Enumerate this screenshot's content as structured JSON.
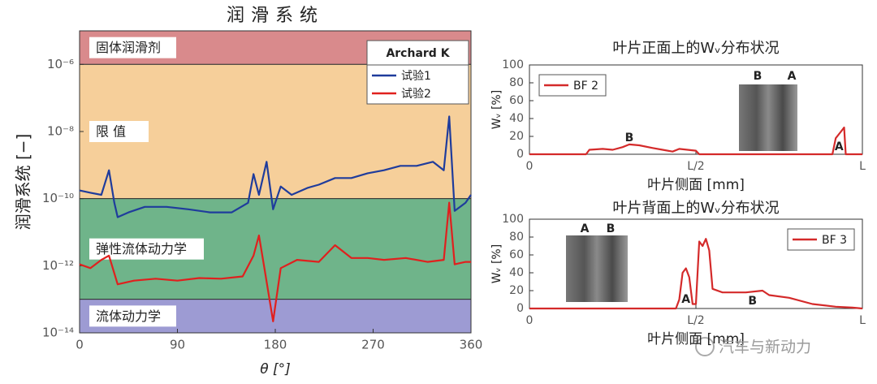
{
  "chart_data": [
    {
      "type": "line",
      "title": "润滑系统",
      "y_label": "润滑系统 [−]",
      "x_label": "θ [°]",
      "log_y": true,
      "xlim": [
        0,
        360
      ],
      "xticks": [
        0,
        90,
        180,
        270,
        360
      ],
      "ylim": [
        1e-14,
        1e-05
      ],
      "yticks": [
        {
          "value": 1e-14,
          "label": "10⁻¹⁴"
        },
        {
          "value": 1e-12,
          "label": "10⁻¹²"
        },
        {
          "value": 1e-10,
          "label": "10⁻¹⁰"
        },
        {
          "value": 1e-08,
          "label": "10⁻⁸"
        },
        {
          "value": 1e-06,
          "label": "10⁻⁶"
        }
      ],
      "regions": [
        {
          "label": "固体润滑剂",
          "from": 1e-06,
          "to": 1e-05,
          "color": "#d98a8c"
        },
        {
          "label": "限 值",
          "from": 1e-10,
          "to": 1e-06,
          "color": "#f6cf9a"
        },
        {
          "label": "弹性流体动力学",
          "from": 1e-13,
          "to": 1e-10,
          "color": "#6fb48a"
        },
        {
          "label": "流体动力学",
          "from": 1e-14,
          "to": 1e-13,
          "color": "#9d9bd3"
        }
      ],
      "legend_title": "Archard K",
      "legend": "upper right",
      "series": [
        {
          "name": "试验1",
          "color": "#1f3c9c",
          "x": [
            0,
            10,
            20,
            27,
            32,
            35,
            45,
            60,
            80,
            100,
            120,
            140,
            155,
            160,
            165,
            172,
            178,
            185,
            195,
            210,
            220,
            235,
            250,
            265,
            280,
            295,
            310,
            325,
            335,
            340,
            345,
            355,
            360
          ],
          "values": [
            1.75e-10,
            1.5e-10,
            1.3e-10,
            7e-10,
            7.5e-11,
            2.8e-11,
            3.9e-11,
            5.7e-11,
            5.7e-11,
            4.8e-11,
            3.9e-11,
            3.9e-11,
            7.5e-11,
            5.4e-10,
            1.3e-10,
            1.25e-09,
            4.8e-11,
            2.3e-10,
            1.3e-10,
            2.1e-10,
            2.6e-10,
            4.1e-10,
            4.1e-10,
            5.7e-10,
            7e-10,
            9.5e-10,
            9.5e-10,
            1.25e-09,
            7e-10,
            2.8e-08,
            4.3e-11,
            7.5e-11,
            1.3e-10
          ]
        },
        {
          "name": "试验2",
          "color": "#e0201e",
          "x": [
            0,
            10,
            20,
            27,
            35,
            50,
            70,
            90,
            110,
            130,
            150,
            160,
            165,
            170,
            178,
            185,
            200,
            220,
            235,
            250,
            265,
            280,
            300,
            320,
            335,
            340,
            345,
            355,
            360
          ],
          "values": [
            1.1e-12,
            8.5e-13,
            1.5e-12,
            2e-12,
            2.8e-13,
            3.6e-13,
            4.1e-13,
            3.6e-13,
            4.3e-13,
            4.1e-13,
            4.8e-13,
            2e-12,
            8e-12,
            8.5e-13,
            2.2e-14,
            8.5e-13,
            1.5e-12,
            1.3e-12,
            4.1e-12,
            1.7e-12,
            1.7e-12,
            1.5e-12,
            1.7e-12,
            1.3e-12,
            1.5e-12,
            7.6e-11,
            1.1e-12,
            1.3e-12,
            1.3e-12
          ]
        }
      ]
    },
    {
      "type": "line",
      "title": "叶片正面上的Wᵥ分布状况",
      "y_label": "Wᵥ [%]",
      "x_label": "叶片侧面 [mm]",
      "xlim": [
        0,
        1
      ],
      "xticks": [
        0,
        {
          "value": 0.5,
          "label": "L/2"
        },
        {
          "value": 1,
          "label": "L"
        }
      ],
      "ylim": [
        0,
        100
      ],
      "yticks": [
        0,
        20,
        40,
        60,
        80,
        100
      ],
      "legend": "upper left",
      "series": [
        {
          "name": "BF 2",
          "color": "#d42a2a",
          "x": [
            0,
            0.17,
            0.18,
            0.22,
            0.25,
            0.28,
            0.3,
            0.33,
            0.37,
            0.4,
            0.43,
            0.45,
            0.5,
            0.51,
            0.91,
            0.92,
            0.935,
            0.945,
            0.95,
            1
          ],
          "values": [
            0,
            0,
            5,
            6,
            5,
            8,
            11,
            10,
            7,
            5,
            3,
            6,
            4,
            0,
            0,
            18,
            25,
            30,
            0,
            0
          ]
        }
      ],
      "annotations": [
        {
          "text": "B",
          "x": 0.3,
          "y": 18
        },
        {
          "text": "A",
          "x": 0.93,
          "y": 8
        }
      ],
      "photo_labels": [
        "B",
        "A"
      ]
    },
    {
      "type": "line",
      "title": "叶片背面上的Wᵥ分布状况",
      "y_label": "Wᵥ [%]",
      "x_label": "叶片侧面 [mm]",
      "xlim": [
        0,
        1
      ],
      "xticks": [
        0,
        {
          "value": 0.5,
          "label": "L/2"
        },
        {
          "value": 1,
          "label": "L"
        }
      ],
      "ylim": [
        0,
        100
      ],
      "yticks": [
        0,
        20,
        40,
        60,
        80,
        100
      ],
      "legend": "upper right",
      "series": [
        {
          "name": "BF 3",
          "color": "#d42a2a",
          "x": [
            0,
            0.44,
            0.45,
            0.46,
            0.47,
            0.48,
            0.49,
            0.5,
            0.51,
            0.52,
            0.53,
            0.54,
            0.55,
            0.58,
            0.65,
            0.7,
            0.72,
            0.78,
            0.85,
            0.92,
            0.97,
            1
          ],
          "values": [
            0,
            0,
            10,
            40,
            45,
            35,
            5,
            5,
            75,
            70,
            78,
            65,
            22,
            18,
            18,
            20,
            15,
            12,
            5,
            2,
            1,
            0
          ]
        }
      ],
      "annotations": [
        {
          "text": "A",
          "x": 0.47,
          "y": 10
        },
        {
          "text": "B",
          "x": 0.67,
          "y": 8
        }
      ],
      "photo_labels": [
        "A",
        "B"
      ]
    }
  ],
  "watermark": "汽车与新动力"
}
